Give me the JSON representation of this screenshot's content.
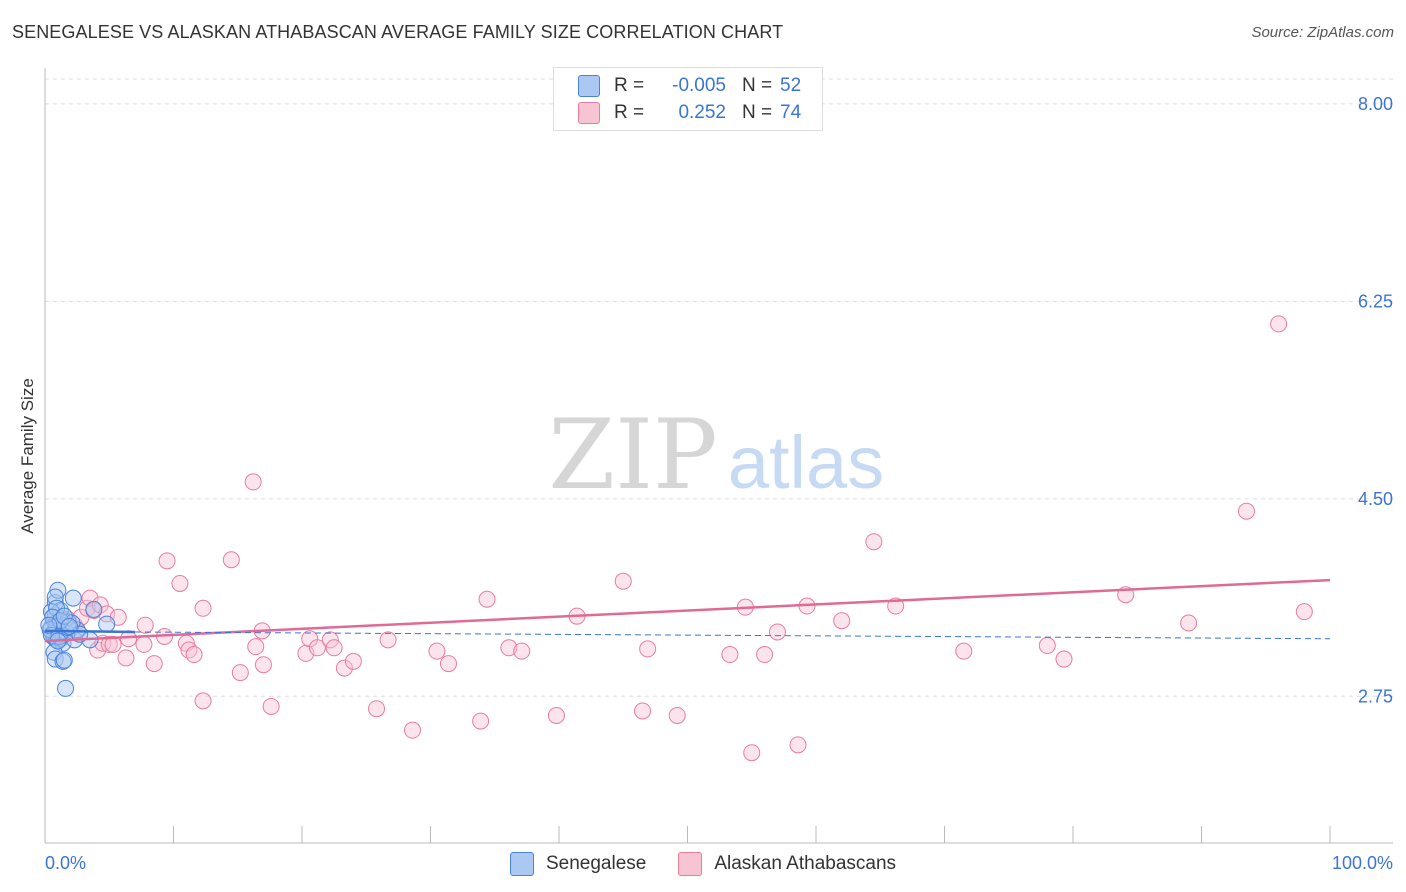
{
  "title": "SENEGALESE VS ALASKAN ATHABASCAN AVERAGE FAMILY SIZE CORRELATION CHART",
  "source": "Source: ZipAtlas.com",
  "watermark": {
    "zip": "ZIP",
    "atlas": "atlas"
  },
  "legend": [
    {
      "r_label": "R =",
      "r_value": "-0.005",
      "n_label": "N =",
      "n_value": "52"
    },
    {
      "r_label": "R =",
      "r_value": "0.252",
      "n_label": "N =",
      "n_value": "74"
    }
  ],
  "colors": {
    "blue_fill": "#aac8f2",
    "blue_stroke": "#4a84d8",
    "blue_line": "#3a74d4",
    "pink_fill": "#f7c4d4",
    "pink_stroke": "#e77da0",
    "pink_line": "#e06a95",
    "tick_text": "#3a74d4"
  },
  "chart_data": {
    "type": "scatter",
    "title": "SENEGALESE VS ALASKAN ATHABASCAN AVERAGE FAMILY SIZE CORRELATION CHART",
    "xlabel": "",
    "ylabel": "Average Family Size",
    "xlim": [
      0,
      100
    ],
    "ylim": [
      1.45,
      8.3
    ],
    "x_tick_labels": [
      "0.0%",
      "100.0%"
    ],
    "y_ticks": [
      2.75,
      4.5,
      6.25,
      8.0
    ],
    "y_tick_labels": [
      "2.75",
      "4.50",
      "6.25",
      "8.00"
    ],
    "grid": true,
    "legend_position": "top-center",
    "series": [
      {
        "name": "Senegalese",
        "r": -0.005,
        "n": 52,
        "trend": {
          "x": [
            0,
            7
          ],
          "y": [
            3.33,
            3.32
          ],
          "dashed_extension": {
            "x": [
              7,
              100
            ],
            "y": [
              3.32,
              3.26
            ]
          }
        },
        "points": [
          {
            "x": 0.5,
            "y": 3.36
          },
          {
            "x": 0.7,
            "y": 3.42
          },
          {
            "x": 0.8,
            "y": 3.47
          },
          {
            "x": 0.9,
            "y": 3.4
          },
          {
            "x": 1.0,
            "y": 3.35
          },
          {
            "x": 1.1,
            "y": 3.3
          },
          {
            "x": 1.2,
            "y": 3.38
          },
          {
            "x": 1.3,
            "y": 3.44
          },
          {
            "x": 0.6,
            "y": 3.31
          },
          {
            "x": 0.7,
            "y": 3.27
          },
          {
            "x": 0.9,
            "y": 3.25
          },
          {
            "x": 1.0,
            "y": 3.33
          },
          {
            "x": 1.1,
            "y": 3.39
          },
          {
            "x": 1.2,
            "y": 3.26
          },
          {
            "x": 1.4,
            "y": 3.29
          },
          {
            "x": 1.5,
            "y": 3.36
          },
          {
            "x": 1.6,
            "y": 3.32
          },
          {
            "x": 0.8,
            "y": 3.58
          },
          {
            "x": 1.0,
            "y": 3.69
          },
          {
            "x": 0.8,
            "y": 3.63
          },
          {
            "x": 1.2,
            "y": 3.51
          },
          {
            "x": 0.5,
            "y": 3.5
          },
          {
            "x": 0.9,
            "y": 3.53
          },
          {
            "x": 2.2,
            "y": 3.62
          },
          {
            "x": 1.8,
            "y": 3.41
          },
          {
            "x": 2.0,
            "y": 3.35
          },
          {
            "x": 1.4,
            "y": 3.22
          },
          {
            "x": 2.3,
            "y": 3.25
          },
          {
            "x": 0.7,
            "y": 3.14
          },
          {
            "x": 0.8,
            "y": 3.08
          },
          {
            "x": 1.4,
            "y": 3.06
          },
          {
            "x": 1.5,
            "y": 3.07
          },
          {
            "x": 1.6,
            "y": 2.82
          },
          {
            "x": 3.5,
            "y": 3.25
          },
          {
            "x": 3.8,
            "y": 3.52
          },
          {
            "x": 4.8,
            "y": 3.39
          },
          {
            "x": 2.5,
            "y": 3.34
          },
          {
            "x": 0.6,
            "y": 3.45
          },
          {
            "x": 1.3,
            "y": 3.33
          },
          {
            "x": 0.9,
            "y": 3.37
          },
          {
            "x": 1.7,
            "y": 3.31
          },
          {
            "x": 0.4,
            "y": 3.34
          },
          {
            "x": 1.1,
            "y": 3.28
          },
          {
            "x": 1.8,
            "y": 3.36
          },
          {
            "x": 2.1,
            "y": 3.4
          },
          {
            "x": 0.5,
            "y": 3.29
          },
          {
            "x": 1.2,
            "y": 3.42
          },
          {
            "x": 1.5,
            "y": 3.46
          },
          {
            "x": 0.3,
            "y": 3.38
          },
          {
            "x": 2.7,
            "y": 3.3
          },
          {
            "x": 1.0,
            "y": 3.24
          },
          {
            "x": 1.9,
            "y": 3.37
          }
        ]
      },
      {
        "name": "Alaskan Athabascans",
        "r": 0.252,
        "n": 74,
        "trend": {
          "x": [
            0,
            100
          ],
          "y": [
            3.24,
            3.78
          ]
        },
        "points": [
          {
            "x": 1.8,
            "y": 3.43
          },
          {
            "x": 2.3,
            "y": 3.38
          },
          {
            "x": 2.5,
            "y": 3.33
          },
          {
            "x": 2.8,
            "y": 3.45
          },
          {
            "x": 3.3,
            "y": 3.53
          },
          {
            "x": 3.5,
            "y": 3.62
          },
          {
            "x": 3.8,
            "y": 3.51
          },
          {
            "x": 4.1,
            "y": 3.16
          },
          {
            "x": 4.3,
            "y": 3.56
          },
          {
            "x": 4.5,
            "y": 3.22
          },
          {
            "x": 4.8,
            "y": 3.48
          },
          {
            "x": 5.0,
            "y": 3.21
          },
          {
            "x": 5.3,
            "y": 3.21
          },
          {
            "x": 5.7,
            "y": 3.45
          },
          {
            "x": 6.3,
            "y": 3.09
          },
          {
            "x": 6.5,
            "y": 3.26
          },
          {
            "x": 7.7,
            "y": 3.21
          },
          {
            "x": 7.8,
            "y": 3.38
          },
          {
            "x": 8.5,
            "y": 3.04
          },
          {
            "x": 9.3,
            "y": 3.28
          },
          {
            "x": 9.5,
            "y": 3.95
          },
          {
            "x": 10.5,
            "y": 3.75
          },
          {
            "x": 11.0,
            "y": 3.22
          },
          {
            "x": 11.2,
            "y": 3.16
          },
          {
            "x": 11.6,
            "y": 3.12
          },
          {
            "x": 12.3,
            "y": 3.53
          },
          {
            "x": 12.3,
            "y": 2.71
          },
          {
            "x": 14.5,
            "y": 3.96
          },
          {
            "x": 15.2,
            "y": 2.96
          },
          {
            "x": 16.4,
            "y": 3.19
          },
          {
            "x": 16.9,
            "y": 3.33
          },
          {
            "x": 16.2,
            "y": 4.65
          },
          {
            "x": 17.0,
            "y": 3.03
          },
          {
            "x": 17.6,
            "y": 2.66
          },
          {
            "x": 20.3,
            "y": 3.13
          },
          {
            "x": 20.6,
            "y": 3.26
          },
          {
            "x": 21.2,
            "y": 3.18
          },
          {
            "x": 22.2,
            "y": 3.25
          },
          {
            "x": 22.5,
            "y": 3.18
          },
          {
            "x": 23.3,
            "y": 3.0
          },
          {
            "x": 24.0,
            "y": 3.06
          },
          {
            "x": 25.8,
            "y": 2.64
          },
          {
            "x": 26.7,
            "y": 3.25
          },
          {
            "x": 28.6,
            "y": 2.45
          },
          {
            "x": 30.5,
            "y": 3.15
          },
          {
            "x": 31.4,
            "y": 3.04
          },
          {
            "x": 33.9,
            "y": 2.53
          },
          {
            "x": 34.4,
            "y": 3.61
          },
          {
            "x": 36.1,
            "y": 3.18
          },
          {
            "x": 37.1,
            "y": 3.15
          },
          {
            "x": 39.8,
            "y": 2.58
          },
          {
            "x": 41.4,
            "y": 3.46
          },
          {
            "x": 45.0,
            "y": 3.77
          },
          {
            "x": 46.5,
            "y": 2.62
          },
          {
            "x": 46.9,
            "y": 3.17
          },
          {
            "x": 49.2,
            "y": 2.58
          },
          {
            "x": 53.3,
            "y": 3.12
          },
          {
            "x": 54.5,
            "y": 3.54
          },
          {
            "x": 55.0,
            "y": 2.25
          },
          {
            "x": 56.0,
            "y": 3.12
          },
          {
            "x": 57.0,
            "y": 3.32
          },
          {
            "x": 58.6,
            "y": 2.32
          },
          {
            "x": 59.3,
            "y": 3.55
          },
          {
            "x": 62.0,
            "y": 3.42
          },
          {
            "x": 64.5,
            "y": 4.12
          },
          {
            "x": 66.2,
            "y": 3.55
          },
          {
            "x": 71.5,
            "y": 3.15
          },
          {
            "x": 78.0,
            "y": 3.2
          },
          {
            "x": 79.3,
            "y": 3.08
          },
          {
            "x": 84.1,
            "y": 3.65
          },
          {
            "x": 89.0,
            "y": 3.4
          },
          {
            "x": 93.5,
            "y": 4.39
          },
          {
            "x": 96.0,
            "y": 6.05
          },
          {
            "x": 98.0,
            "y": 3.5
          }
        ]
      }
    ]
  }
}
